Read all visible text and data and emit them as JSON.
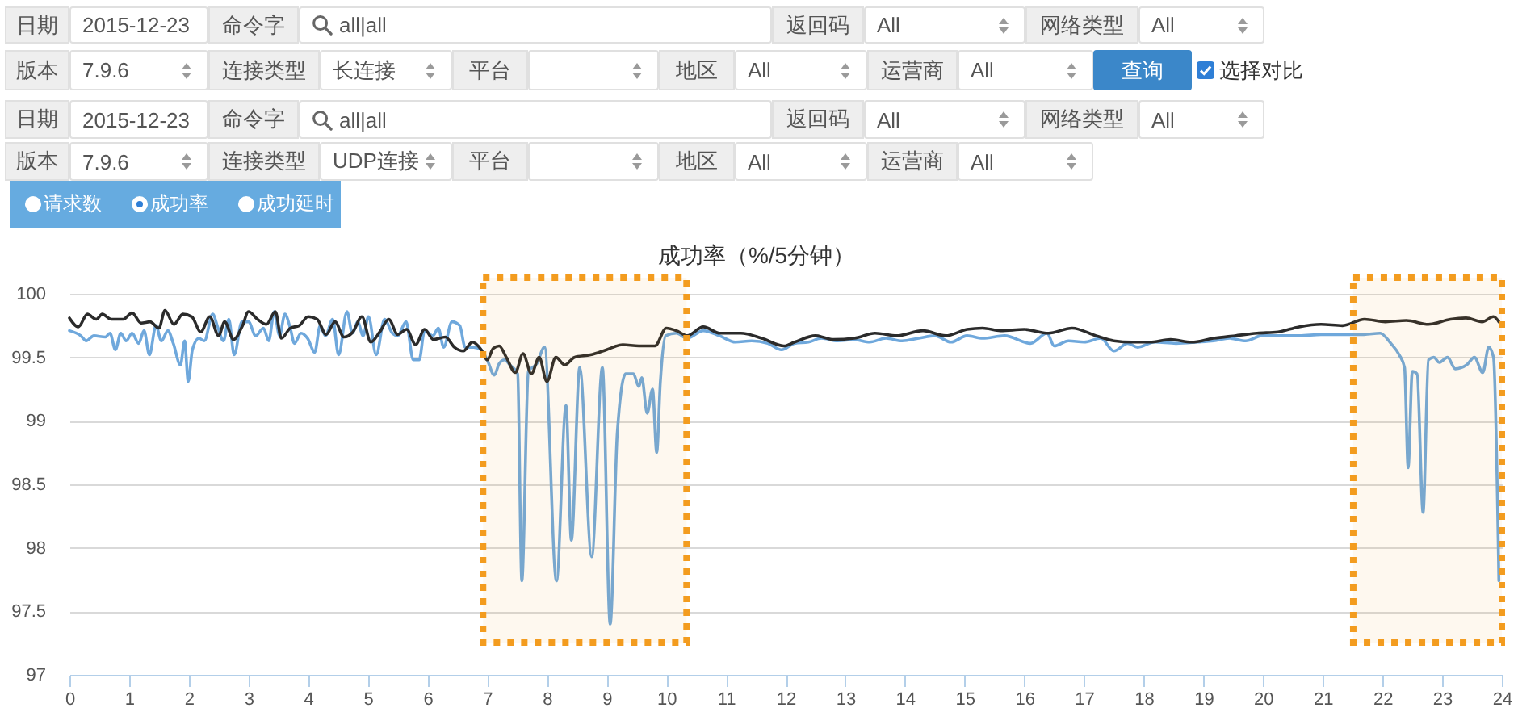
{
  "chart_data": [
    {
      "type": "other",
      "annotations": [
        "日期",
        "2015-12-23",
        "命令字",
        "all|all",
        "返回码",
        "All",
        "网络类型",
        "All",
        "版本",
        "7.9.6",
        "连接类型",
        "长连接",
        "平台",
        "地区",
        "All",
        "运营商",
        "All",
        "查询",
        "选择对比",
        "日期",
        "2015-12-23",
        "命令字",
        "all|all",
        "返回码",
        "All",
        "网络类型",
        "All",
        "版本",
        "7.9.6",
        "连接类型",
        "UDP连接",
        "平台",
        "地区",
        "All",
        "运营商",
        "All",
        "请求数",
        "成功率",
        "成功延时"
      ]
    },
    {
      "type": "line",
      "title": "成功率（%/5分钟）",
      "xlim": [
        0,
        24
      ],
      "xticks": [
        0,
        1,
        2,
        3,
        4,
        5,
        6,
        7,
        8,
        9,
        10,
        11,
        12,
        13,
        14,
        15,
        16,
        17,
        18,
        19,
        20,
        21,
        22,
        23,
        24
      ],
      "ylim": [
        97,
        100
      ],
      "yticks": [
        97,
        97.5,
        98,
        98.5,
        99,
        99.5,
        100
      ],
      "grid": "y",
      "series": [
        {
          "color": "#6fa8dc",
          "x": [
            0,
            0.19,
            0.28,
            0.41,
            0.6,
            0.68,
            0.77,
            0.86,
            0.95,
            1.05,
            1.16,
            1.25,
            1.34,
            1.45,
            1.54,
            1.65,
            1.74,
            1.86,
            1.93,
            1.99,
            2.06,
            2.17,
            2.26,
            2.4,
            2.49,
            2.58,
            2.67,
            2.76,
            2.89,
            3.0,
            3.12,
            3.25,
            3.34,
            3.43,
            3.52,
            3.61,
            3.7,
            3.77,
            3.88,
            3.99,
            4.11,
            4.2,
            4.29,
            4.41,
            4.51,
            4.65,
            4.74,
            4.83,
            4.92,
            5.01,
            5.14,
            5.28,
            5.41,
            5.5,
            5.64,
            5.76,
            5.86,
            5.95,
            6.09,
            6.18,
            6.27,
            6.41,
            6.54,
            6.63,
            6.77,
            6.9,
            7.0,
            7.12,
            7.2,
            7.29,
            7.38,
            7.51,
            7.58,
            7.69,
            7.83,
            7.96,
            8.16,
            8.32,
            8.41,
            8.55,
            8.75,
            8.93,
            9.06,
            9.18,
            9.32,
            9.45,
            9.54,
            9.59,
            9.68,
            9.77,
            9.84,
            9.9,
            9.99,
            10.17,
            10.35,
            10.62,
            10.89,
            11.16,
            11.43,
            11.7,
            11.93,
            12.15,
            12.38,
            12.6,
            12.87,
            13.14,
            13.41,
            13.68,
            13.95,
            14.23,
            14.5,
            14.77,
            15.04,
            15.3,
            15.67,
            16.1,
            16.38,
            16.5,
            16.74,
            17.0,
            17.28,
            17.5,
            17.73,
            17.9,
            18.18,
            18.54,
            18.9,
            19.17,
            19.44,
            19.71,
            19.98,
            20.25,
            20.61,
            20.97,
            21.33,
            21.69,
            21.96,
            22.14,
            22.28,
            22.37,
            22.43,
            22.5,
            22.58,
            22.68,
            22.77,
            22.86,
            22.95,
            23.09,
            23.22,
            23.41,
            23.54,
            23.68,
            23.78,
            23.86,
            23.95
          ],
          "values": [
            99.71,
            99.67,
            99.63,
            99.67,
            99.66,
            99.69,
            99.56,
            99.69,
            99.63,
            99.69,
            99.61,
            99.71,
            99.52,
            99.75,
            99.63,
            99.71,
            99.61,
            99.44,
            99.63,
            99.31,
            99.56,
            99.65,
            99.63,
            99.84,
            99.73,
            99.63,
            99.8,
            99.52,
            99.78,
            99.78,
            99.67,
            99.73,
            99.63,
            99.86,
            99.67,
            99.84,
            99.73,
            99.61,
            99.69,
            99.65,
            99.54,
            99.75,
            99.67,
            99.8,
            99.52,
            99.86,
            99.69,
            99.78,
            99.67,
            99.82,
            99.52,
            99.8,
            99.69,
            99.67,
            99.78,
            99.48,
            99.48,
            99.71,
            99.67,
            99.73,
            99.58,
            99.78,
            99.75,
            99.58,
            99.58,
            99.56,
            99.48,
            99.36,
            99.45,
            99.48,
            99.44,
            99.37,
            97.74,
            99.39,
            99.45,
            99.58,
            97.74,
            99.12,
            98.06,
            99.42,
            97.93,
            99.42,
            97.4,
            98.91,
            99.37,
            99.37,
            99.27,
            99.34,
            99.06,
            99.25,
            98.75,
            99.3,
            99.67,
            99.69,
            99.65,
            99.71,
            99.67,
            99.62,
            99.63,
            99.61,
            99.56,
            99.61,
            99.62,
            99.65,
            99.63,
            99.64,
            99.62,
            99.65,
            99.63,
            99.65,
            99.67,
            99.62,
            99.67,
            99.65,
            99.67,
            99.61,
            99.69,
            99.59,
            99.63,
            99.62,
            99.65,
            99.55,
            99.61,
            99.58,
            99.62,
            99.61,
            99.62,
            99.63,
            99.65,
            99.63,
            99.67,
            99.67,
            99.67,
            99.68,
            99.68,
            99.68,
            99.69,
            99.61,
            99.52,
            99.42,
            98.63,
            99.39,
            99.37,
            98.28,
            99.48,
            99.5,
            99.46,
            99.5,
            99.41,
            99.44,
            99.5,
            99.38,
            99.58,
            99.5,
            97.74
          ]
        },
        {
          "color": "#2b2b2b",
          "x": [
            0,
            0.15,
            0.3,
            0.45,
            0.55,
            0.7,
            0.9,
            1.05,
            1.2,
            1.35,
            1.5,
            1.6,
            1.75,
            1.9,
            2.05,
            2.2,
            2.35,
            2.5,
            2.6,
            2.75,
            2.9,
            3.0,
            3.15,
            3.3,
            3.45,
            3.55,
            3.7,
            3.85,
            4.0,
            4.15,
            4.3,
            4.45,
            4.6,
            4.75,
            4.9,
            5.05,
            5.2,
            5.35,
            5.5,
            5.65,
            5.8,
            5.95,
            6.1,
            6.3,
            6.45,
            6.6,
            6.75,
            6.9,
            7.0,
            7.1,
            7.2,
            7.32,
            7.47,
            7.6,
            7.74,
            7.87,
            8.0,
            8.15,
            8.3,
            8.46,
            8.73,
            9.0,
            9.27,
            9.54,
            9.81,
            10.0,
            10.17,
            10.35,
            10.62,
            10.9,
            11.25,
            11.6,
            11.97,
            12.15,
            12.5,
            12.8,
            13.15,
            13.5,
            13.86,
            14.3,
            14.68,
            15.04,
            15.3,
            15.6,
            16.0,
            16.4,
            16.8,
            17.2,
            17.5,
            17.8,
            18.1,
            18.45,
            18.8,
            19.17,
            19.53,
            19.9,
            20.25,
            20.6,
            20.97,
            21.33,
            21.7,
            22.05,
            22.4,
            22.77,
            23.14,
            23.4,
            23.67,
            23.86,
            23.95
          ],
          "values": [
            99.81,
            99.74,
            99.84,
            99.8,
            99.84,
            99.8,
            99.8,
            99.85,
            99.77,
            99.78,
            99.73,
            99.87,
            99.76,
            99.84,
            99.82,
            99.7,
            99.82,
            99.67,
            99.78,
            99.64,
            99.75,
            99.86,
            99.8,
            99.76,
            99.86,
            99.65,
            99.73,
            99.75,
            99.82,
            99.8,
            99.68,
            99.78,
            99.66,
            99.7,
            99.82,
            99.62,
            99.7,
            99.8,
            99.68,
            99.72,
            99.6,
            99.72,
            99.64,
            99.66,
            99.58,
            99.55,
            99.62,
            99.56,
            99.48,
            99.57,
            99.59,
            99.5,
            99.38,
            99.53,
            99.37,
            99.5,
            99.31,
            99.5,
            99.44,
            99.5,
            99.52,
            99.56,
            99.6,
            99.59,
            99.59,
            99.73,
            99.71,
            99.67,
            99.74,
            99.69,
            99.69,
            99.65,
            99.59,
            99.62,
            99.67,
            99.64,
            99.65,
            99.69,
            99.67,
            99.71,
            99.67,
            99.72,
            99.73,
            99.71,
            99.72,
            99.69,
            99.73,
            99.67,
            99.63,
            99.62,
            99.62,
            99.64,
            99.62,
            99.65,
            99.67,
            99.69,
            99.7,
            99.74,
            99.76,
            99.75,
            99.8,
            99.78,
            99.79,
            99.76,
            99.8,
            99.81,
            99.78,
            99.82,
            99.78
          ]
        }
      ],
      "bands": [
        {
          "axis": "x",
          "from": 6.93,
          "to": 10.34,
          "color": "#f39c1f"
        },
        {
          "axis": "x",
          "from": 21.51,
          "to": 24,
          "color": "#f39c1f"
        }
      ]
    }
  ]
}
